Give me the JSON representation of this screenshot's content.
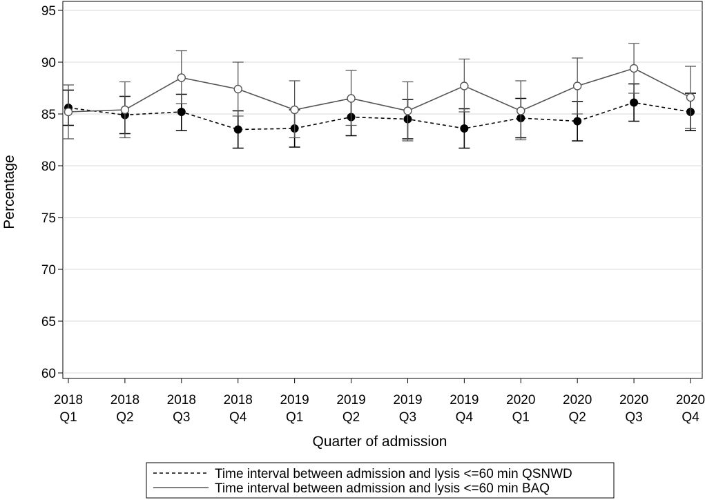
{
  "chart_data": {
    "type": "line",
    "title": "",
    "xlabel": "Quarter of admission",
    "ylabel": "Percentage",
    "ylim": [
      60,
      95
    ],
    "yticks": [
      60,
      65,
      70,
      75,
      80,
      85,
      90,
      95
    ],
    "grid": true,
    "legend_position": "bottom",
    "categories": [
      [
        "2018",
        "Q1"
      ],
      [
        "2018",
        "Q2"
      ],
      [
        "2018",
        "Q3"
      ],
      [
        "2018",
        "Q4"
      ],
      [
        "2019",
        "Q1"
      ],
      [
        "2019",
        "Q2"
      ],
      [
        "2019",
        "Q3"
      ],
      [
        "2019",
        "Q4"
      ],
      [
        "2020",
        "Q1"
      ],
      [
        "2020",
        "Q2"
      ],
      [
        "2020",
        "Q3"
      ],
      [
        "2020",
        "Q4"
      ]
    ],
    "series": [
      {
        "name": "Time interval between admission and lysis <=60 min QSNWD",
        "style": "dashed",
        "marker": "filled-circle",
        "color": "#000000",
        "values": [
          85.6,
          84.9,
          85.2,
          83.5,
          83.6,
          84.7,
          84.5,
          83.6,
          84.6,
          84.3,
          86.1,
          85.2
        ],
        "lower": [
          83.9,
          83.1,
          83.4,
          81.7,
          81.8,
          82.9,
          82.6,
          81.7,
          82.7,
          82.4,
          84.3,
          83.4
        ],
        "upper": [
          87.3,
          86.7,
          86.9,
          85.3,
          85.4,
          86.4,
          86.4,
          85.5,
          86.5,
          86.2,
          87.9,
          87.0
        ]
      },
      {
        "name": "Time interval between admission and lysis <=60 min BAQ",
        "style": "solid",
        "marker": "open-circle",
        "color": "#555555",
        "values": [
          85.2,
          85.4,
          88.5,
          87.4,
          85.4,
          86.5,
          85.3,
          87.7,
          85.3,
          87.7,
          89.4,
          86.6
        ],
        "lower": [
          82.6,
          82.7,
          86.0,
          84.8,
          82.7,
          83.9,
          82.4,
          85.2,
          82.5,
          85.0,
          87.0,
          83.6
        ],
        "upper": [
          87.8,
          88.1,
          91.1,
          90.0,
          88.2,
          89.2,
          88.1,
          90.3,
          88.2,
          90.4,
          91.8,
          89.6
        ]
      }
    ]
  }
}
